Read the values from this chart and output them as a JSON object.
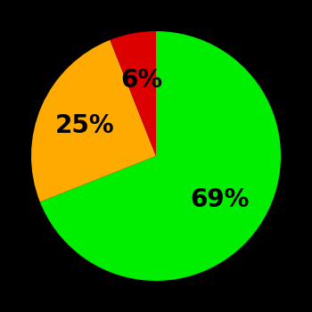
{
  "slices": [
    69,
    25,
    6
  ],
  "colors": [
    "#00ee00",
    "#ffaa00",
    "#dd0000"
  ],
  "labels": [
    "69%",
    "25%",
    "6%"
  ],
  "label_colors": [
    "#000000",
    "#000000",
    "#000000"
  ],
  "background_color": "#000000",
  "startangle": 90,
  "label_fontsize": 20,
  "label_fontweight": "bold",
  "labeldistance": 0.62
}
